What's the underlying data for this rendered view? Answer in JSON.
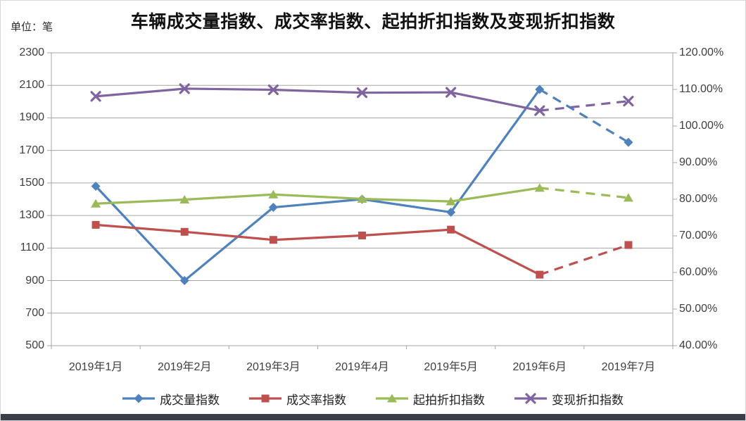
{
  "meta": {
    "unit_label": "单位：笔",
    "title": "车辆成交量指数、成交率指数、起拍折扣指数及变现折扣指数"
  },
  "colors": {
    "blue": "#4F81BD",
    "red": "#C0504D",
    "green": "#9BBB59",
    "purple": "#8064A2",
    "gridline": "#A6A6A6",
    "axis": "#A6A6A6",
    "text": "#3F3F3F",
    "bottom_bar": "#3A3F4A",
    "background": "#FFFFFF"
  },
  "chart_data": {
    "type": "line",
    "title": "车辆成交量指数、成交率指数、起拍折扣指数及变现折扣指数",
    "subtitle": "",
    "grid": true,
    "legend_position": "bottom",
    "dashed_last_segment": true,
    "categories": [
      "2019年1月",
      "2019年2月",
      "2019年3月",
      "2019年4月",
      "2019年5月",
      "2019年6月",
      "2019年7月"
    ],
    "left_axis": {
      "unit": "笔",
      "min": 500,
      "max": 2300,
      "step": 200,
      "ticks": [
        "2300",
        "2100",
        "1900",
        "1700",
        "1500",
        "1300",
        "1100",
        "900",
        "700",
        "500"
      ]
    },
    "right_axis": {
      "unit": "%",
      "min": 40,
      "max": 120,
      "step": 10,
      "ticks": [
        "120.00%",
        "110.00%",
        "100.00%",
        "90.00%",
        "80.00%",
        "70.00%",
        "60.00%",
        "50.00%",
        "40.00%"
      ]
    },
    "series": [
      {
        "name": "成交量指数",
        "axis": "left",
        "marker": "diamond",
        "color": "#4F81BD",
        "values": [
          1480,
          900,
          1350,
          1400,
          1320,
          2075,
          1750
        ]
      },
      {
        "name": "成交率指数",
        "axis": "right",
        "marker": "square",
        "color": "#C0504D",
        "values": [
          73.0,
          71.1,
          68.9,
          70.1,
          71.7,
          59.4,
          67.5
        ]
      },
      {
        "name": "起拍折扣指数",
        "axis": "right",
        "marker": "triangle",
        "color": "#9BBB59",
        "values": [
          78.8,
          79.9,
          81.3,
          80.1,
          79.4,
          83.1,
          80.4
        ]
      },
      {
        "name": "变现折扣指数",
        "axis": "right",
        "marker": "x",
        "color": "#8064A2",
        "values": [
          108.1,
          110.2,
          109.9,
          109.1,
          109.2,
          104.2,
          106.8
        ]
      }
    ]
  }
}
